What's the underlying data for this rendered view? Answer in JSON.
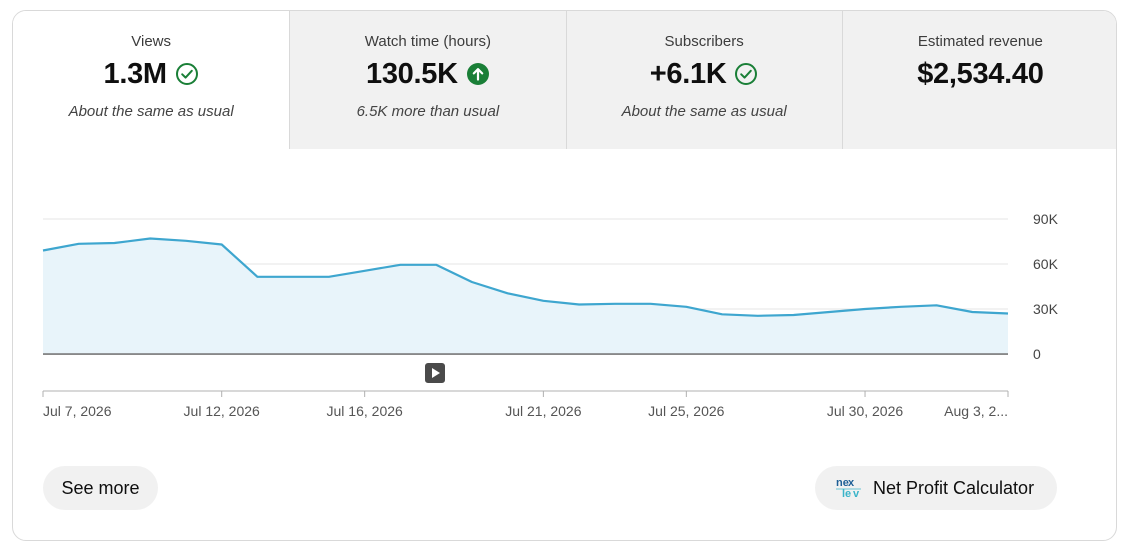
{
  "metrics": [
    {
      "label": "Views",
      "value": "1.3M",
      "status_icon": "check-circle-icon",
      "note": "About the same as usual"
    },
    {
      "label": "Watch time (hours)",
      "value": "130.5K",
      "status_icon": "arrow-up-circle-icon",
      "note": "6.5K more than usual"
    },
    {
      "label": "Subscribers",
      "value": "+6.1K",
      "status_icon": "check-circle-icon",
      "note": "About the same as usual"
    },
    {
      "label": "Estimated revenue",
      "value": "$2,534.40",
      "status_icon": "",
      "note": ""
    }
  ],
  "colors": {
    "line": "#3ea6cf",
    "fill": "#e8f4fa",
    "positive": "#1a7f37",
    "grid": "#e5e5e5",
    "axis": "#909090"
  },
  "chart_data": {
    "type": "area",
    "x": [
      "Jul 7, 2026",
      "Jul 8, 2026",
      "Jul 9, 2026",
      "Jul 10, 2026",
      "Jul 11, 2026",
      "Jul 12, 2026",
      "Jul 13, 2026",
      "Jul 14, 2026",
      "Jul 15, 2026",
      "Jul 16, 2026",
      "Jul 17, 2026",
      "Jul 18, 2026",
      "Jul 19, 2026",
      "Jul 20, 2026",
      "Jul 21, 2026",
      "Jul 22, 2026",
      "Jul 23, 2026",
      "Jul 24, 2026",
      "Jul 25, 2026",
      "Jul 26, 2026",
      "Jul 27, 2026",
      "Jul 28, 2026",
      "Jul 29, 2026",
      "Jul 30, 2026",
      "Jul 31, 2026",
      "Aug 1, 2026",
      "Aug 2, 2026",
      "Aug 3, 2026"
    ],
    "series": [
      {
        "values": [
          69000,
          73500,
          74000,
          77000,
          75500,
          73000,
          51500,
          51500,
          51500,
          55500,
          59500,
          59500,
          48000,
          40500,
          35500,
          33000,
          33500,
          33500,
          31500,
          26500,
          25500,
          26000,
          28000,
          30000,
          31500,
          32500,
          28000,
          27000
        ]
      }
    ],
    "y_ticks": [
      "90K",
      "60K",
      "30K",
      "0"
    ],
    "x_tick_labels": [
      "Jul 7, 2026",
      "Jul 12, 2026",
      "Jul 16, 2026",
      "Jul 21, 2026",
      "Jul 25, 2026",
      "Jul 30, 2026",
      "Aug 3, 2..."
    ],
    "x_tick_indices": [
      0,
      5,
      9,
      14,
      18,
      23,
      27
    ],
    "ylim": [
      0,
      90000
    ],
    "grid": true,
    "title": "",
    "xlabel": "",
    "ylabel": ""
  },
  "buttons": {
    "see_more": "See more",
    "net_profit_calculator": "Net Profit Calculator"
  }
}
